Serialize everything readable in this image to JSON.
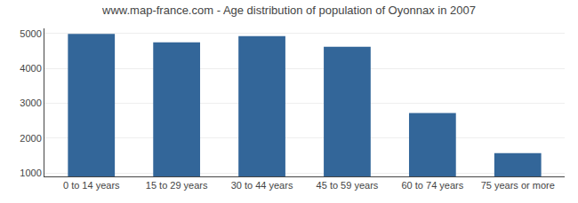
{
  "chart_data": {
    "type": "bar",
    "title": "www.map-france.com - Age distribution of population of Oyonnax in 2007",
    "categories": [
      "0 to 14 years",
      "15 to 29 years",
      "30 to 44 years",
      "45 to 59 years",
      "60 to 74 years",
      "75 years or more"
    ],
    "values": [
      4990,
      4750,
      4930,
      4620,
      2720,
      1570
    ],
    "color": "#336699",
    "ylim": [
      900,
      5150
    ],
    "yticks": [
      1000,
      2000,
      3000,
      4000,
      5000
    ],
    "grid": true
  }
}
